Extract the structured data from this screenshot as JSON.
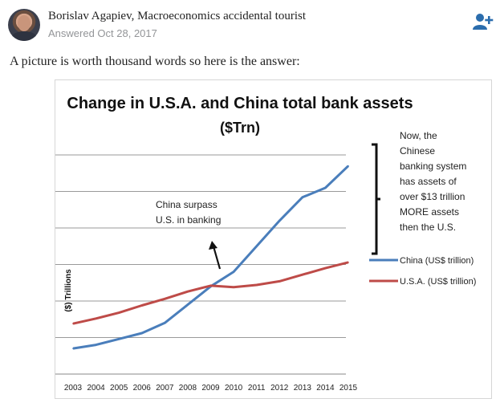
{
  "author": {
    "name": "Borislav Agapiev, Macroeconomics accidental tourist",
    "answered": "Answered Oct 28, 2017",
    "follow_icon": "follow-user-icon"
  },
  "answer": {
    "intro": "A picture is worth thousand words so here is the answer:"
  },
  "colors": {
    "china": "#4a7ebb",
    "usa": "#be4b48"
  },
  "chart_data": {
    "type": "line",
    "title": "Change in U.S.A. and China total bank assets",
    "subtitle": "($Trn)",
    "ylabel": "($) Trillions",
    "xlabel": "",
    "ylim": [
      0,
      30
    ],
    "yticks": [
      0,
      5,
      10,
      15,
      20,
      25,
      30
    ],
    "x": [
      "2003",
      "2004",
      "2005",
      "2006",
      "2007",
      "2008",
      "2009",
      "2010",
      "2011",
      "2012",
      "2013",
      "2014",
      "2015"
    ],
    "grid": true,
    "legend_position": "right",
    "series": [
      {
        "name": "China (US$ trillion)",
        "color": "#4a7ebb",
        "values": [
          3.5,
          4.0,
          4.8,
          5.6,
          7.0,
          9.5,
          12.0,
          14.0,
          17.5,
          21.0,
          24.2,
          25.5,
          28.5
        ]
      },
      {
        "name": "U.S.A. (US$ trillion)",
        "color": "#be4b48",
        "values": [
          6.9,
          7.6,
          8.4,
          9.4,
          10.3,
          11.3,
          12.1,
          11.9,
          12.2,
          12.7,
          13.6,
          14.5,
          15.3
        ]
      }
    ],
    "annotations": {
      "surpass": [
        "China surpass",
        "U.S. in banking"
      ],
      "note": [
        "Now, the",
        "Chinese",
        "banking system",
        "has assets of",
        "over $13 trillion",
        "MORE assets",
        "then the U.S."
      ]
    }
  }
}
